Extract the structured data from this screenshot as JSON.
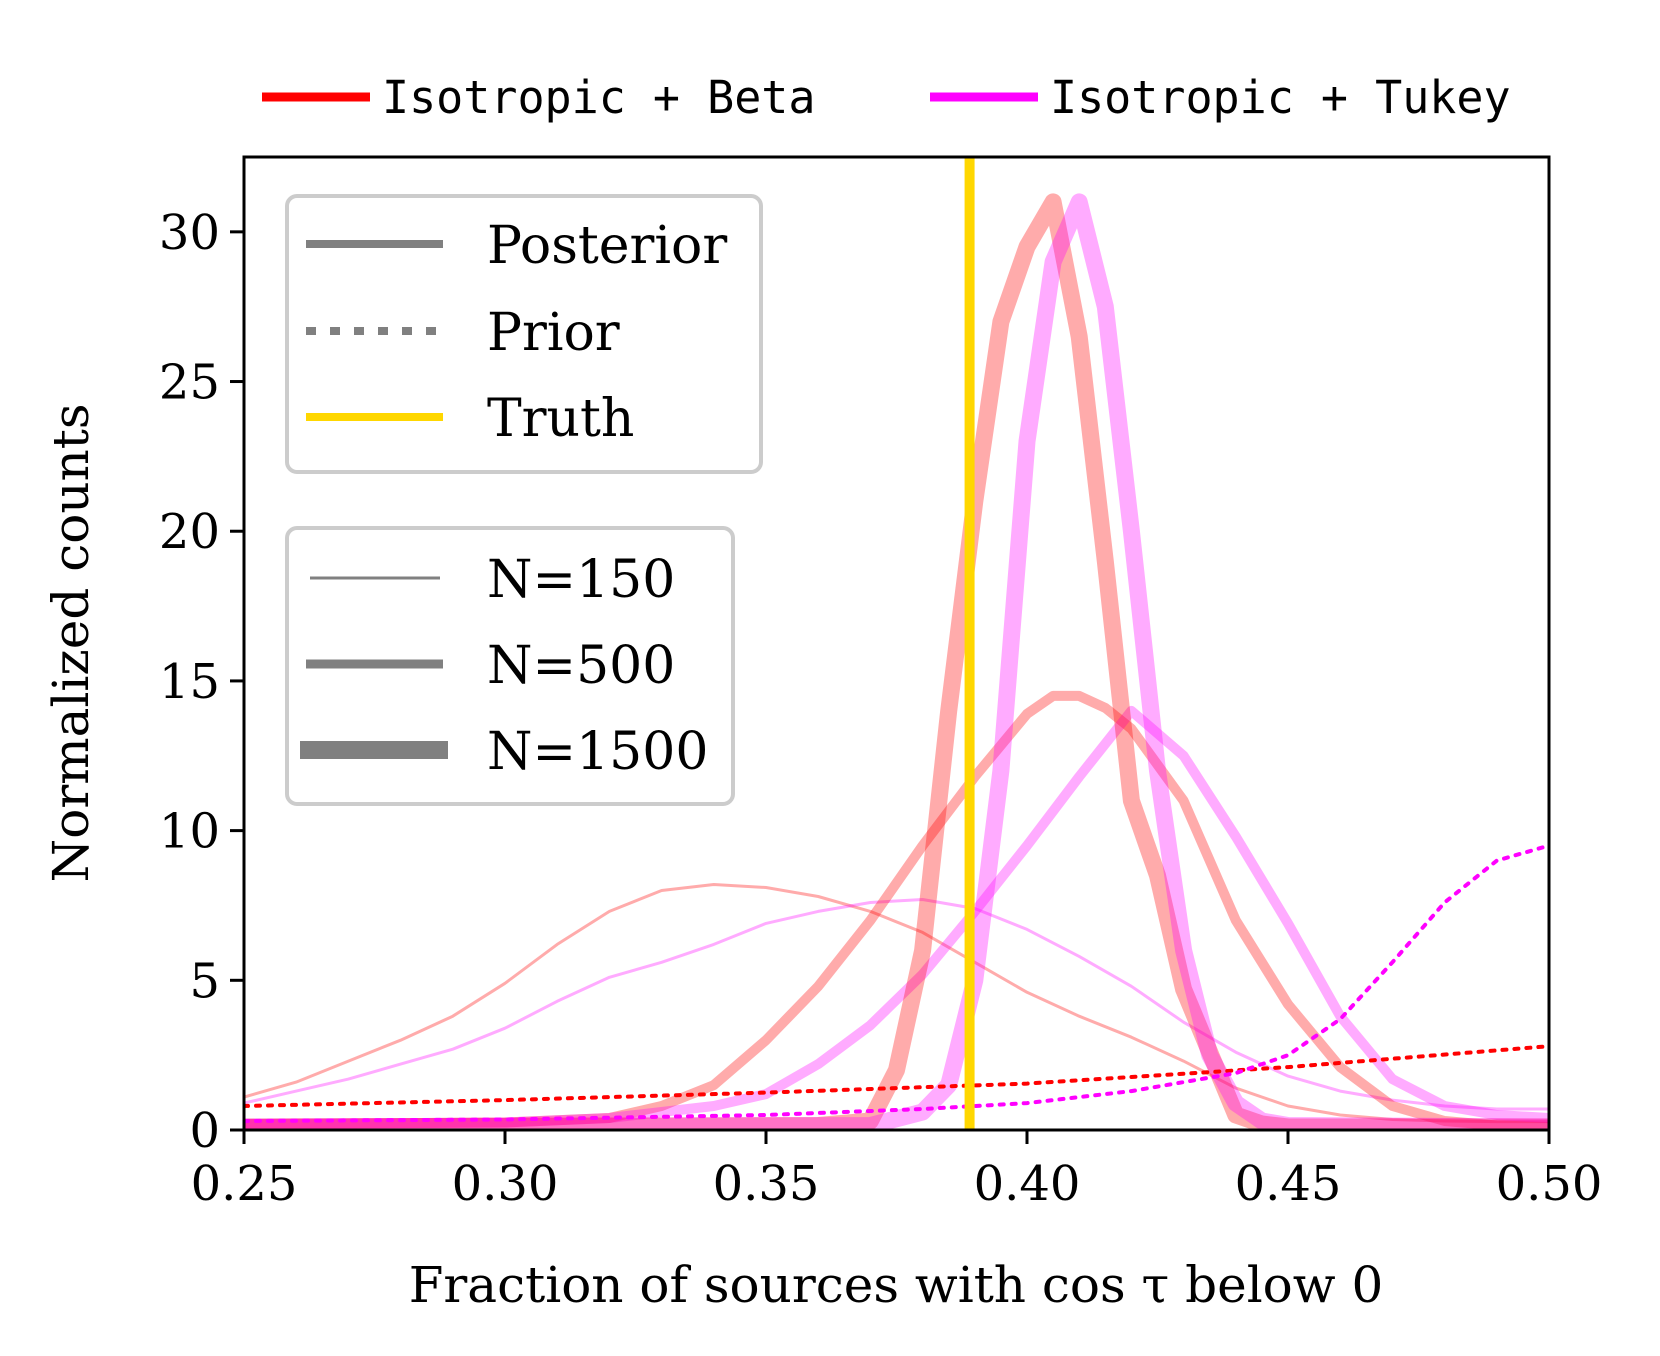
{
  "chart_data": {
    "type": "line",
    "xlabel": "Fraction of sources with cos τ below 0",
    "ylabel": "Normalized counts",
    "xlim": [
      0.25,
      0.5
    ],
    "ylim": [
      0,
      32.5
    ],
    "xticks": [
      0.25,
      0.3,
      0.35,
      0.4,
      0.45,
      0.5
    ],
    "xtick_labels": [
      "0.25",
      "0.30",
      "0.35",
      "0.40",
      "0.45",
      "0.50"
    ],
    "yticks": [
      0,
      5,
      10,
      15,
      20,
      25,
      30
    ],
    "ytick_labels": [
      "0",
      "5",
      "10",
      "15",
      "20",
      "25",
      "30"
    ],
    "truth": 0.389,
    "colors": {
      "beta": "#ff0000",
      "tukey": "#ff00ff",
      "truth": "#ffd700",
      "legend_gray": "#808080"
    },
    "top_legend": [
      {
        "label": "Isotropic + Beta",
        "color": "#ff0000"
      },
      {
        "label": "Isotropic + Tukey",
        "color": "#ff00ff"
      }
    ],
    "style_legend": [
      "Posterior",
      "Prior",
      "Truth"
    ],
    "size_legend": [
      "N=150",
      "N=500",
      "N=1500"
    ],
    "series": [
      {
        "name": "Beta posterior N=150",
        "model": "beta",
        "kind": "posterior",
        "N": 150,
        "x": [
          0.25,
          0.26,
          0.27,
          0.28,
          0.29,
          0.3,
          0.31,
          0.32,
          0.33,
          0.34,
          0.35,
          0.36,
          0.37,
          0.38,
          0.39,
          0.4,
          0.41,
          0.42,
          0.43,
          0.44,
          0.45,
          0.46,
          0.47,
          0.48,
          0.49,
          0.5
        ],
        "y": [
          1.1,
          1.6,
          2.3,
          3.0,
          3.8,
          4.9,
          6.2,
          7.3,
          8.0,
          8.2,
          8.1,
          7.8,
          7.3,
          6.6,
          5.6,
          4.6,
          3.8,
          3.1,
          2.3,
          1.4,
          0.8,
          0.5,
          0.35,
          0.3,
          0.28,
          0.28
        ]
      },
      {
        "name": "Tukey posterior N=150",
        "model": "tukey",
        "kind": "posterior",
        "N": 150,
        "x": [
          0.25,
          0.26,
          0.27,
          0.28,
          0.29,
          0.3,
          0.31,
          0.32,
          0.33,
          0.34,
          0.35,
          0.36,
          0.37,
          0.38,
          0.39,
          0.4,
          0.41,
          0.42,
          0.43,
          0.44,
          0.45,
          0.46,
          0.47,
          0.48,
          0.49,
          0.5
        ],
        "y": [
          0.9,
          1.3,
          1.7,
          2.2,
          2.7,
          3.4,
          4.3,
          5.1,
          5.6,
          6.2,
          6.9,
          7.3,
          7.6,
          7.7,
          7.4,
          6.7,
          5.8,
          4.8,
          3.6,
          2.6,
          1.8,
          1.3,
          1.0,
          0.8,
          0.7,
          0.7
        ]
      },
      {
        "name": "Beta posterior N=500",
        "model": "beta",
        "kind": "posterior",
        "N": 500,
        "x": [
          0.25,
          0.3,
          0.32,
          0.33,
          0.34,
          0.35,
          0.36,
          0.37,
          0.38,
          0.39,
          0.4,
          0.405,
          0.41,
          0.415,
          0.42,
          0.43,
          0.44,
          0.45,
          0.46,
          0.47,
          0.48,
          0.49,
          0.5
        ],
        "y": [
          0.2,
          0.25,
          0.4,
          0.8,
          1.5,
          3.0,
          4.8,
          7.0,
          9.5,
          11.8,
          13.9,
          14.5,
          14.5,
          14.1,
          13.4,
          11.0,
          7.0,
          4.2,
          2.1,
          0.8,
          0.3,
          0.15,
          0.1
        ]
      },
      {
        "name": "Tukey posterior N=500",
        "model": "tukey",
        "kind": "posterior",
        "N": 500,
        "x": [
          0.25,
          0.3,
          0.32,
          0.34,
          0.35,
          0.36,
          0.37,
          0.38,
          0.39,
          0.4,
          0.41,
          0.42,
          0.43,
          0.44,
          0.45,
          0.46,
          0.47,
          0.48,
          0.49,
          0.5
        ],
        "y": [
          0.2,
          0.25,
          0.4,
          0.8,
          1.2,
          2.2,
          3.5,
          5.2,
          7.3,
          9.5,
          11.8,
          14.0,
          12.5,
          9.8,
          6.9,
          3.8,
          1.7,
          0.8,
          0.5,
          0.4
        ]
      },
      {
        "name": "Beta posterior N=1500",
        "model": "beta",
        "kind": "posterior",
        "N": 1500,
        "x": [
          0.25,
          0.36,
          0.37,
          0.375,
          0.38,
          0.385,
          0.39,
          0.395,
          0.4,
          0.405,
          0.41,
          0.415,
          0.42,
          0.425,
          0.43,
          0.44,
          0.445,
          0.45,
          0.5
        ],
        "y": [
          0.1,
          0.15,
          0.3,
          2.0,
          6.0,
          14.0,
          21.0,
          27.0,
          29.5,
          31.0,
          26.5,
          19.0,
          11.0,
          8.5,
          4.7,
          0.5,
          0.2,
          0.1,
          0.1
        ]
      },
      {
        "name": "Tukey posterior N=1500",
        "model": "tukey",
        "kind": "posterior",
        "N": 1500,
        "x": [
          0.25,
          0.37,
          0.38,
          0.385,
          0.39,
          0.395,
          0.4,
          0.405,
          0.41,
          0.415,
          0.42,
          0.425,
          0.43,
          0.435,
          0.44,
          0.445,
          0.45,
          0.5
        ],
        "y": [
          0.1,
          0.15,
          0.6,
          1.5,
          5.0,
          12.0,
          23.0,
          29.0,
          31.0,
          27.5,
          20.0,
          12.0,
          6.0,
          2.5,
          0.9,
          0.3,
          0.15,
          0.1
        ]
      },
      {
        "name": "Beta prior",
        "model": "beta",
        "kind": "prior",
        "N": null,
        "x": [
          0.25,
          0.3,
          0.35,
          0.4,
          0.45,
          0.5
        ],
        "y": [
          0.8,
          1.0,
          1.25,
          1.55,
          2.1,
          2.8
        ]
      },
      {
        "name": "Tukey prior",
        "model": "tukey",
        "kind": "prior",
        "N": null,
        "x": [
          0.25,
          0.3,
          0.35,
          0.38,
          0.4,
          0.42,
          0.43,
          0.44,
          0.45,
          0.46,
          0.47,
          0.48,
          0.49,
          0.5
        ],
        "y": [
          0.3,
          0.35,
          0.5,
          0.7,
          0.9,
          1.3,
          1.6,
          1.9,
          2.5,
          3.7,
          5.6,
          7.6,
          9.0,
          9.5
        ]
      }
    ]
  }
}
